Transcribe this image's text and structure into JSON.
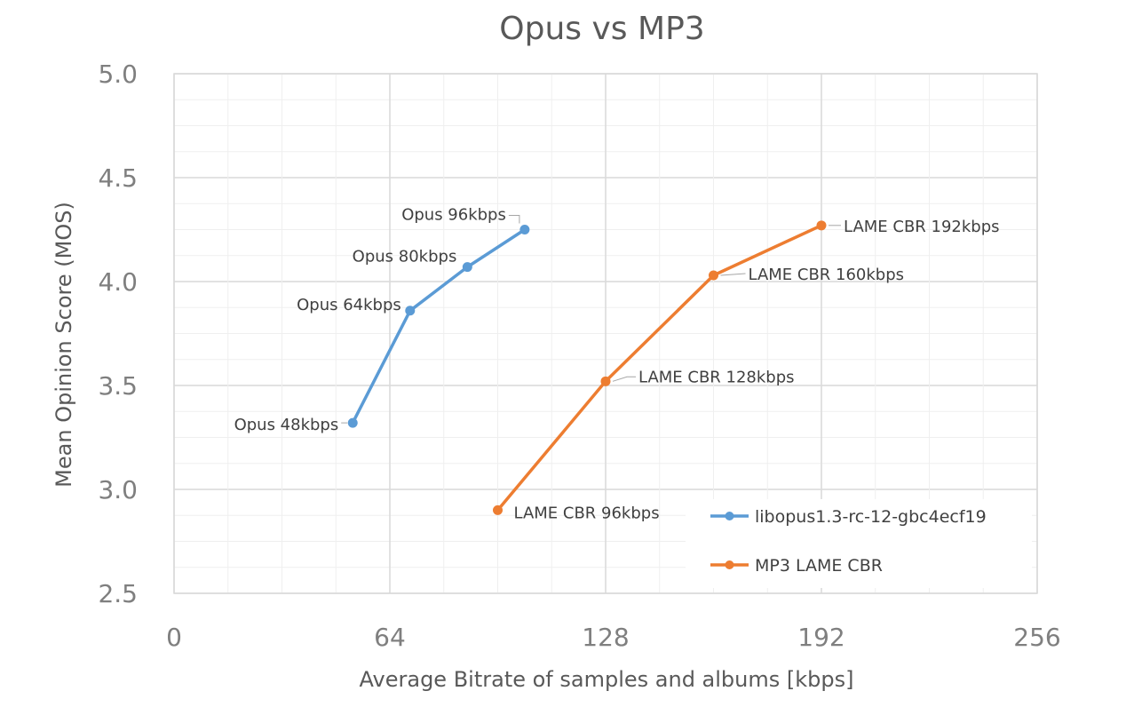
{
  "chart_data": {
    "type": "line",
    "title": "Opus vs MP3",
    "xlabel": "Average Bitrate of samples and albums [kbps]",
    "ylabel": "Mean Opinion Score (MOS)",
    "xlim": [
      0,
      256
    ],
    "ylim": [
      2.5,
      5.0
    ],
    "x_ticks": [
      "0",
      "64",
      "128",
      "192",
      "256"
    ],
    "y_ticks": [
      "2.5",
      "3.0",
      "3.5",
      "4.0",
      "4.5",
      "5.0"
    ],
    "grid": true,
    "legend_position": "bottom-right",
    "series": [
      {
        "name": "libopus1.3-rc-12-gbc4ecf19",
        "color": "#5b9bd5",
        "points": [
          {
            "x": 53,
            "y": 3.32,
            "label": "Opus 48kbps"
          },
          {
            "x": 70,
            "y": 3.86,
            "label": "Opus 64kbps"
          },
          {
            "x": 87,
            "y": 4.07,
            "label": "Opus 80kbps"
          },
          {
            "x": 104,
            "y": 4.25,
            "label": "Opus 96kbps"
          }
        ]
      },
      {
        "name": "MP3 LAME CBR",
        "color": "#ed7d31",
        "points": [
          {
            "x": 96,
            "y": 2.9,
            "label": "LAME CBR 96kbps"
          },
          {
            "x": 128,
            "y": 3.52,
            "label": "LAME CBR 128kbps"
          },
          {
            "x": 160,
            "y": 4.03,
            "label": "LAME CBR 160kbps"
          },
          {
            "x": 192,
            "y": 4.27,
            "label": "LAME CBR 192kbps"
          }
        ]
      }
    ]
  }
}
